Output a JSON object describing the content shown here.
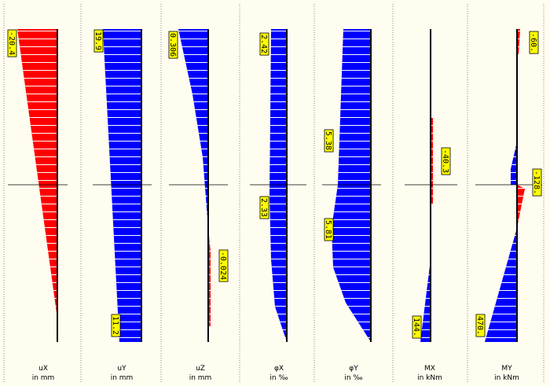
{
  "panels": [
    {
      "name": "uX",
      "unit": "in mm",
      "labels": [
        "-20.4"
      ]
    },
    {
      "name": "uY",
      "unit": "in mm",
      "labels": [
        "19.9",
        "11.2"
      ]
    },
    {
      "name": "uZ",
      "unit": "in mm",
      "labels": [
        "0.306",
        "-0.024"
      ]
    },
    {
      "name": "φX",
      "unit": "in ‰",
      "labels": [
        "2.42",
        "2.33"
      ]
    },
    {
      "name": "φY",
      "unit": "in ‰",
      "labels": [
        "5.38",
        "5.81"
      ]
    },
    {
      "name": "MX",
      "unit": "in kNm",
      "labels": [
        "144.",
        "-40.3"
      ]
    },
    {
      "name": "MY",
      "unit": "in kNm",
      "labels": [
        "-60.",
        "-128.",
        "470."
      ]
    }
  ]
}
